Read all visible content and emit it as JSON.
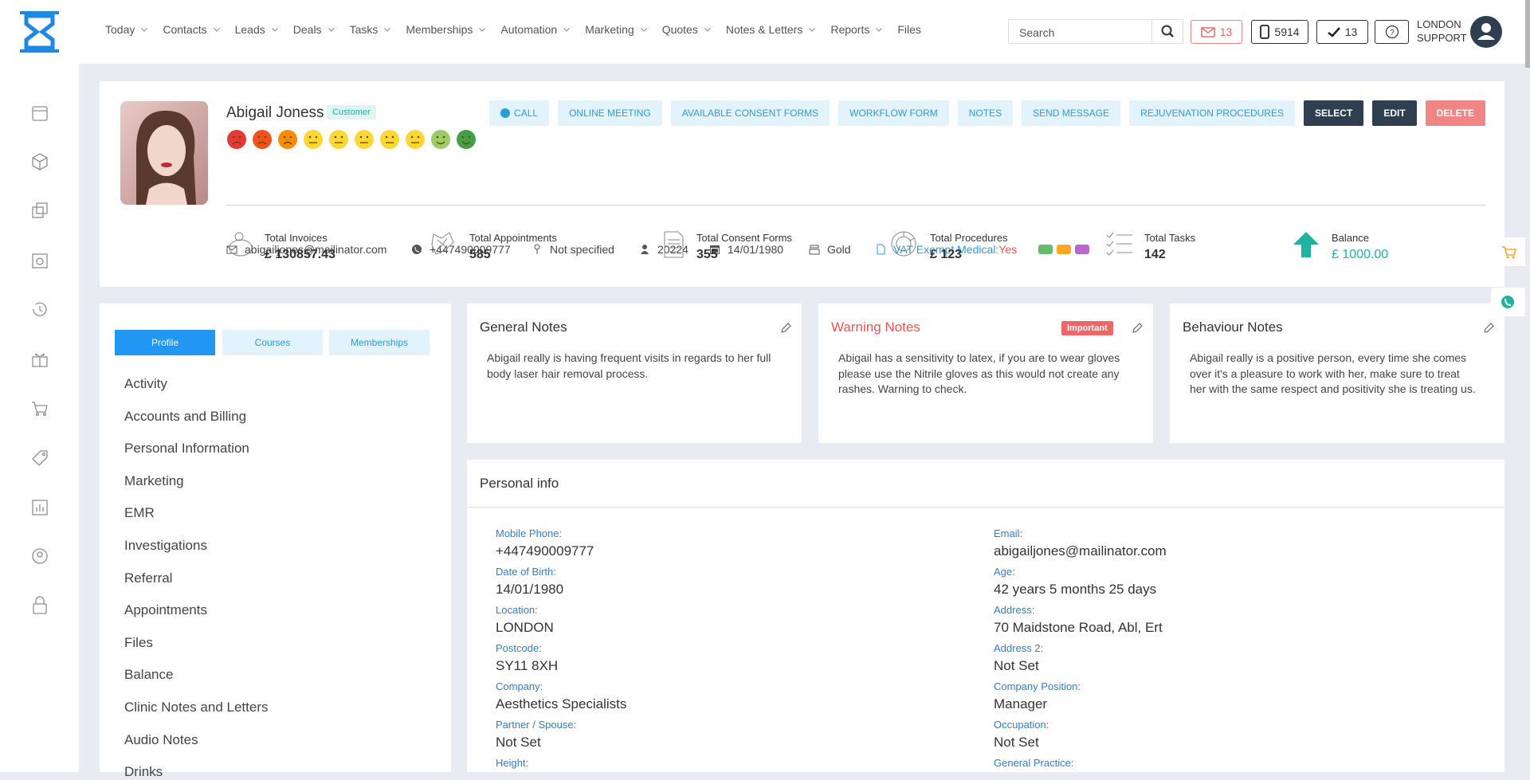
{
  "nav": {
    "items": [
      "Today",
      "Contacts",
      "Leads",
      "Deals",
      "Tasks",
      "Memberships",
      "Automation",
      "Marketing",
      "Quotes",
      "Notes & Letters",
      "Reports",
      "Files"
    ],
    "search_placeholder": "Search",
    "mail_count": "13",
    "phone_count": "5914",
    "task_count": "13",
    "user": [
      "LONDON",
      "SUPPORT"
    ]
  },
  "profile": {
    "name": "Abigail Joness",
    "badge": "Customer",
    "actions": [
      "CALL",
      "ONLINE MEETING",
      "AVAILABLE CONSENT FORMS",
      "WORKFLOW FORM",
      "NOTES",
      "SEND MESSAGE",
      "REJUVENATION PROCEDURES",
      "SELECT",
      "EDIT",
      "DELETE"
    ],
    "email": "abigailjones@mailinator.com",
    "phone": "+447490009777",
    "gender": "Not specified",
    "id": "20224",
    "dob": "14/01/1980",
    "tier": "Gold",
    "vat_label": "VAT Exempt Medical:",
    "vat_value": "Yes",
    "stats": [
      {
        "label": "Total Invoices",
        "value": "£ 130857.43"
      },
      {
        "label": "Total Appointments",
        "value": "585"
      },
      {
        "label": "Total Consent Forms",
        "value": "355"
      },
      {
        "label": "Total Procedures",
        "value": "£ 123"
      },
      {
        "label": "Total Tasks",
        "value": "142"
      },
      {
        "label": "Balance",
        "value": "£ 1000.00"
      }
    ]
  },
  "tabs": [
    "Profile",
    "Courses",
    "Memberships"
  ],
  "menu": [
    "Activity",
    "Accounts and Billing",
    "Personal Information",
    "Marketing",
    "EMR",
    "Investigations",
    "Referral",
    "Appointments",
    "Files",
    "Balance",
    "Clinic Notes and Letters",
    "Audio Notes",
    "Drinks"
  ],
  "notes": [
    {
      "title": "General Notes",
      "text": "Abigail really is having frequent visits in regards to her full body laser hair removal process."
    },
    {
      "title": "Warning Notes",
      "tag": "Important",
      "text": "Abigail has a sensitivity to latex, if you are to wear gloves please use the Nitrile gloves as this would not create any rashes. Warning to check."
    },
    {
      "title": "Behaviour Notes",
      "text": "Abigail really is a positive person, every time she comes over it's a pleasure to work with her, make sure to treat her with the same respect and positivity she is treating us."
    }
  ],
  "personal_info": {
    "title": "Personal info",
    "fields": [
      {
        "label": "Mobile Phone:",
        "value": "+447490009777"
      },
      {
        "label": "Email:",
        "value": "abigailjones@mailinator.com"
      },
      {
        "label": "Date of Birth:",
        "value": "14/01/1980"
      },
      {
        "label": "Age:",
        "value": "42 years 5 months 25 days"
      },
      {
        "label": "Location:",
        "value": "LONDON"
      },
      {
        "label": "Address:",
        "value": "70 Maidstone Road, Abl, Ert"
      },
      {
        "label": "Postcode:",
        "value": "SY11 8XH"
      },
      {
        "label": "Address 2:",
        "value": "Not Set"
      },
      {
        "label": "Company:",
        "value": "Aesthetics Specialists"
      },
      {
        "label": "Company Position:",
        "value": "Manager"
      },
      {
        "label": "Partner / Spouse:",
        "value": "Not Set"
      },
      {
        "label": "Occupation:",
        "value": "Not Set"
      },
      {
        "label": "Height:"
      },
      {
        "label": "General Practice:"
      }
    ]
  }
}
